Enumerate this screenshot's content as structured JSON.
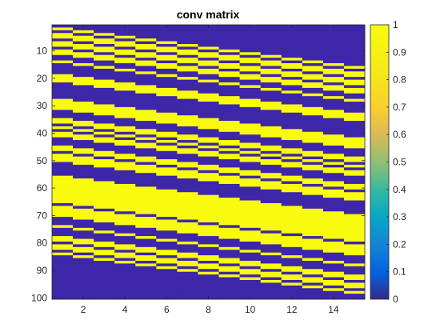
{
  "chart_data": {
    "type": "heatmap",
    "title": "conv matrix",
    "xlabel": "",
    "ylabel": "",
    "n_cols": 15,
    "n_rows": 100,
    "xlim": [
      0.5,
      15.5
    ],
    "ylim": [
      0.5,
      100.5
    ],
    "y_direction": "reverse",
    "x_ticks": [
      2,
      4,
      6,
      8,
      10,
      12,
      14
    ],
    "y_ticks": [
      10,
      20,
      30,
      40,
      50,
      60,
      70,
      80,
      90,
      100
    ],
    "value_range": [
      0,
      1
    ],
    "colormap": "parula",
    "colorbar": {
      "ticks": [
        0,
        0.1,
        0.2,
        0.3,
        0.4,
        0.5,
        0.6,
        0.7,
        0.8,
        0.9,
        1
      ],
      "tick_labels": [
        "0",
        "0.1",
        "0.2",
        "0.3",
        "0.4",
        "0.5",
        "0.6",
        "0.7",
        "0.8",
        "0.9",
        "1"
      ]
    },
    "kernel_note": "",
    "kernel": [
      1,
      0,
      1,
      1,
      0,
      1,
      1,
      0,
      1,
      1,
      0,
      0,
      1,
      0,
      0,
      0,
      0,
      1,
      1,
      1,
      0,
      0,
      0,
      0,
      0,
      0,
      1,
      1,
      1,
      1,
      0,
      0,
      0,
      1,
      1,
      0,
      1,
      0,
      1,
      1,
      0,
      0,
      0,
      1,
      1,
      0,
      1,
      1,
      1,
      0,
      0,
      0,
      0,
      0,
      1,
      1,
      1,
      1,
      1,
      1,
      1,
      1,
      1,
      1,
      0,
      1,
      1,
      1,
      1,
      0,
      0,
      0,
      1,
      0,
      0,
      0,
      1,
      1,
      0,
      1,
      1,
      0,
      1,
      0,
      0,
      0,
      0,
      0,
      0,
      0
    ],
    "kernel_start_row": 2,
    "shift_per_col": 1,
    "colors": {
      "low": "#3E26A8",
      "high": "#F9FB0E"
    }
  }
}
